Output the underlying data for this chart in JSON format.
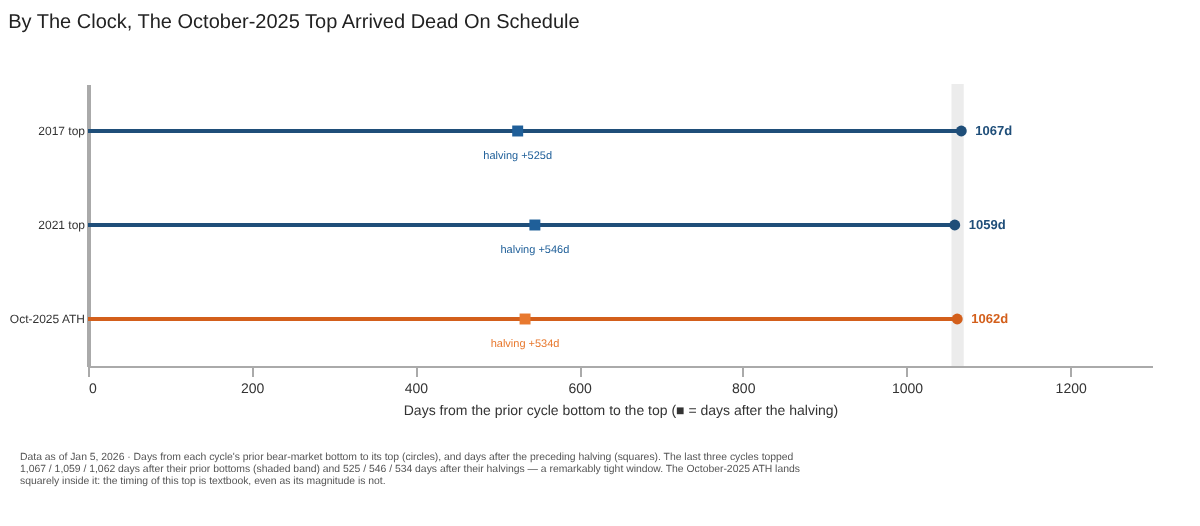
{
  "chart_data": {
    "type": "lollipop",
    "orientation": "horizontal",
    "title": "By The Clock, The October-2025 Top Arrived Dead On Schedule",
    "xlabel": "Days from the prior cycle bottom to the top  (■ = days after the halving)",
    "categories": [
      "2017 top",
      "2021 top",
      "Oct-2025 ATH"
    ],
    "series": [
      {
        "marker": "circle",
        "colors": [
          "#1f4e79",
          "#1f4e79",
          "#d35f1b"
        ],
        "values": [
          1067,
          1059,
          1062
        ],
        "value_labels": [
          "1067d",
          "1059d",
          "1062d"
        ]
      },
      {
        "type": "scatter",
        "marker": "square",
        "colors": [
          "#1f5f99",
          "#1f5f99",
          "#e8792f"
        ],
        "values": [
          525,
          546,
          534
        ],
        "value_labels": [
          "halving +525d",
          "halving +546d",
          "halving +534d"
        ]
      }
    ],
    "xlim": [
      0,
      1300
    ],
    "xticks": [
      0,
      200,
      400,
      600,
      800,
      1000,
      1200
    ],
    "bands": [
      {
        "axis": "x",
        "from": 1055,
        "to": 1070,
        "color": "#ececec"
      }
    ],
    "grid": false,
    "annotations": [
      "Data as of Jan 5, 2026 · Days from each cycle's prior bear-market bottom to its top (circles), and days after the preceding halving (squares). The last three cycles topped 1,067 / 1,059 / 1,062 days after their prior bottoms (shaded band) and 525 / 546 / 534 days after their halvings — a remarkably tight window. The October-2025 ATH lands squarely inside it: the timing of this top is textbook, even as its magnitude is not."
    ]
  }
}
